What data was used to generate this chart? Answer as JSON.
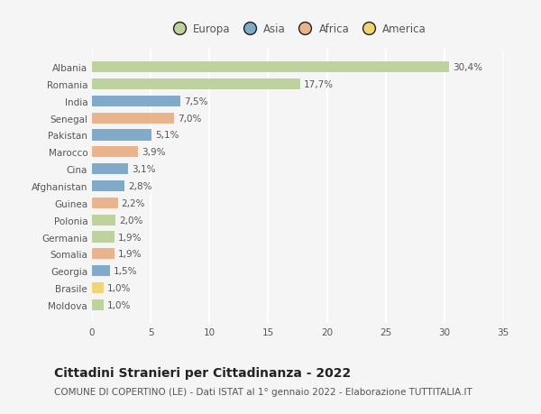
{
  "countries": [
    "Albania",
    "Romania",
    "India",
    "Senegal",
    "Pakistan",
    "Marocco",
    "Cina",
    "Afghanistan",
    "Guinea",
    "Polonia",
    "Germania",
    "Somalia",
    "Georgia",
    "Brasile",
    "Moldova"
  ],
  "values": [
    30.4,
    17.7,
    7.5,
    7.0,
    5.1,
    3.9,
    3.1,
    2.8,
    2.2,
    2.0,
    1.9,
    1.9,
    1.5,
    1.0,
    1.0
  ],
  "labels": [
    "30,4%",
    "17,7%",
    "7,5%",
    "7,0%",
    "5,1%",
    "3,9%",
    "3,1%",
    "2,8%",
    "2,2%",
    "2,0%",
    "1,9%",
    "1,9%",
    "1,5%",
    "1,0%",
    "1,0%"
  ],
  "continents": [
    "Europa",
    "Europa",
    "Asia",
    "Africa",
    "Asia",
    "Africa",
    "Asia",
    "Asia",
    "Africa",
    "Europa",
    "Europa",
    "Africa",
    "Asia",
    "America",
    "Europa"
  ],
  "colors": {
    "Europa": "#b5cc8e",
    "Asia": "#6b9dc2",
    "Africa": "#e8a87c",
    "America": "#f0d060"
  },
  "legend_labels": [
    "Europa",
    "Asia",
    "Africa",
    "America"
  ],
  "legend_colors": [
    "#b5cc8e",
    "#6b9dc2",
    "#e8a87c",
    "#f0d060"
  ],
  "xlim": [
    0,
    35
  ],
  "xticks": [
    0,
    5,
    10,
    15,
    20,
    25,
    30,
    35
  ],
  "title": "Cittadini Stranieri per Cittadinanza - 2022",
  "subtitle": "COMUNE DI COPERTINO (LE) - Dati ISTAT al 1° gennaio 2022 - Elaborazione TUTTITALIA.IT",
  "background_color": "#f5f5f5",
  "grid_color": "#ffffff",
  "bar_height": 0.65,
  "label_fontsize": 7.5,
  "tick_fontsize": 7.5,
  "title_fontsize": 10,
  "subtitle_fontsize": 7.5,
  "legend_fontsize": 8.5
}
